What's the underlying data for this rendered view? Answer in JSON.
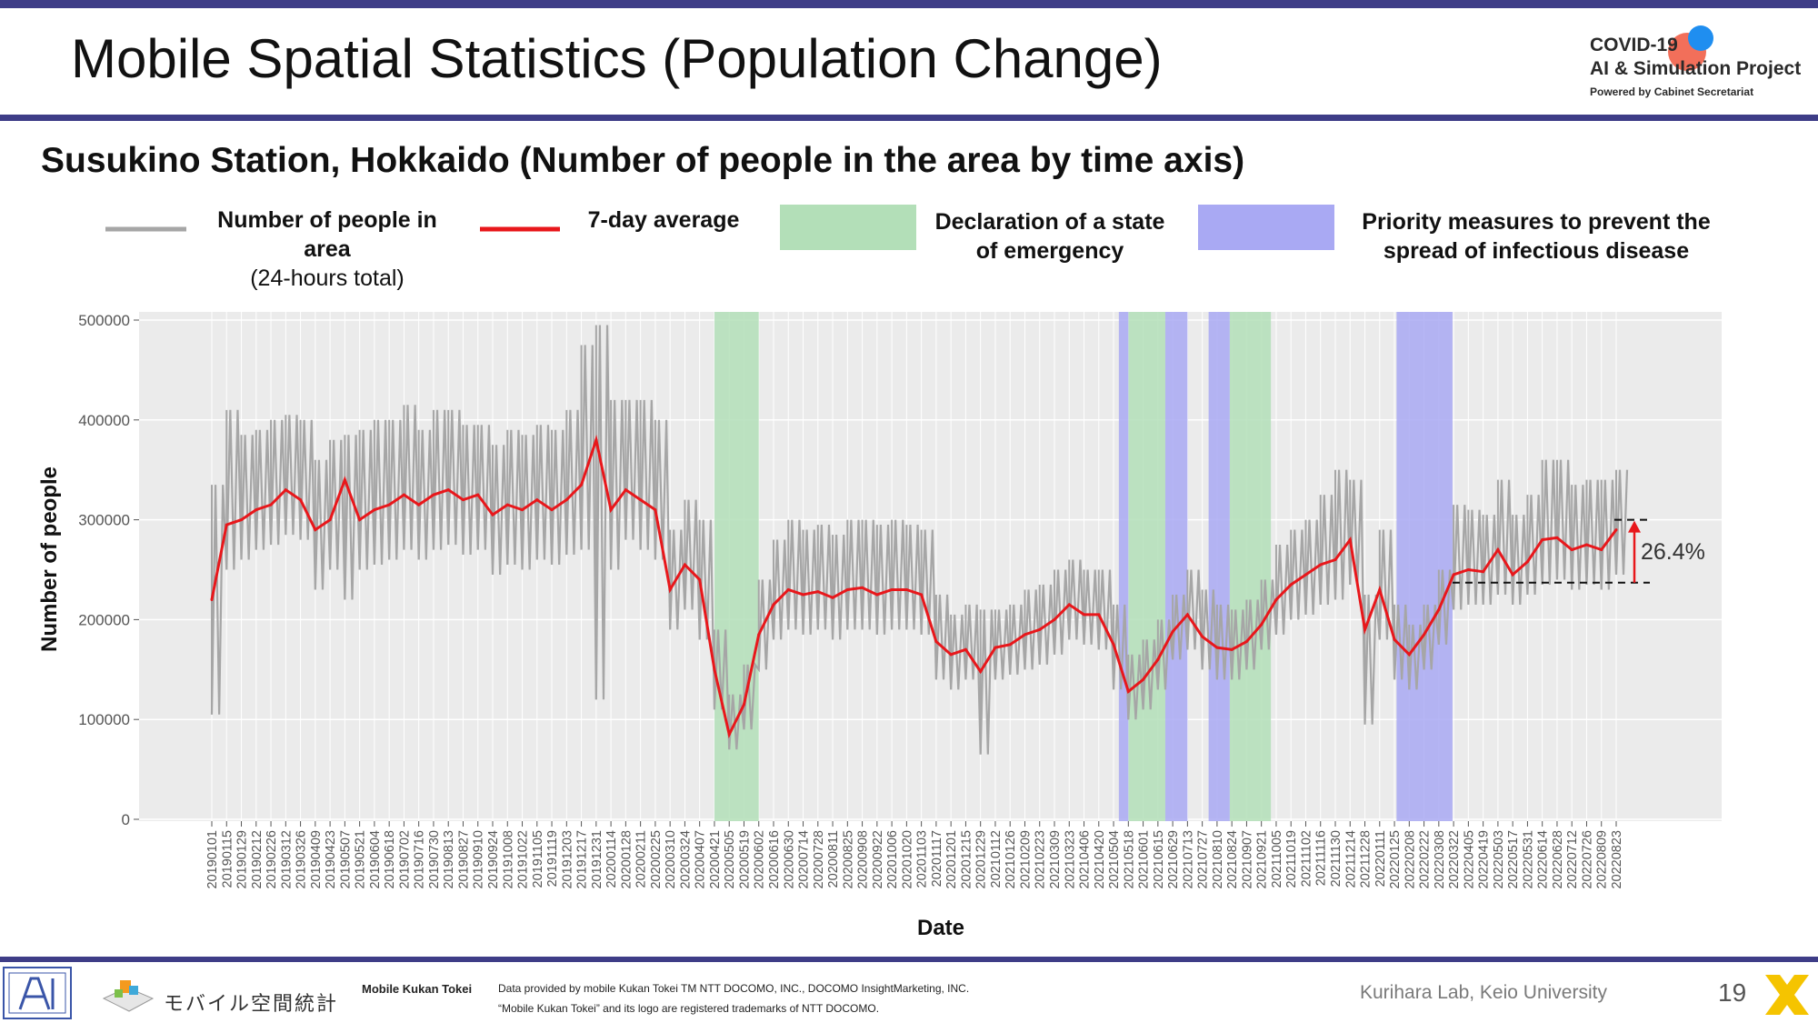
{
  "slide": {
    "title": "Mobile Spatial Statistics (Population Change)",
    "page_number": "19"
  },
  "logo": {
    "line1": "COVID-19",
    "line2": "AI & Simulation Project",
    "line3": "Powered by Cabinet Secretariat"
  },
  "legend": {
    "people_line1": "Number of people in area",
    "people_line2": "(24-hours total)",
    "average": "7-day average",
    "emergency_line1": "Declaration of a state",
    "emergency_line2": "of emergency",
    "priority_line1": "Priority measures to prevent the",
    "priority_line2": "spread of infectious disease"
  },
  "footer": {
    "brand_jp": "モバイル空間統計",
    "brand_en": "Mobile Kukan Tokei",
    "provider_line1": "Data provided by mobile Kukan Tokei TM NTT DOCOMO, INC., DOCOMO InsightMarketing, INC.",
    "provider_line2": "“Mobile Kukan Tokei” and its logo are registered trademarks of NTT DOCOMO.",
    "lab": "Kurihara Lab, Keio University"
  },
  "colors": {
    "accent": "#3e3d87",
    "daily_line": "#a6a6a6",
    "average_line": "#e8171b",
    "emergency": "#b3dfb8",
    "priority": "#a9a9f3",
    "panel": "#ebebeb"
  },
  "chart_data": {
    "type": "line",
    "title": "Susukino Station, Hokkaido (Number of people in the area by time axis)",
    "xlabel": "Date",
    "ylabel": "Number of people",
    "ylim": [
      0,
      500000
    ],
    "yticks": [
      "0",
      "100000",
      "200000",
      "300000",
      "400000",
      "500000"
    ],
    "x_ticks": [
      "20190101",
      "20190115",
      "20190129",
      "20190212",
      "20190226",
      "20190312",
      "20190326",
      "20190409",
      "20190423",
      "20190507",
      "20190521",
      "20190604",
      "20190618",
      "20190702",
      "20190716",
      "20190730",
      "20190813",
      "20190827",
      "20190910",
      "20190924",
      "20191008",
      "20191022",
      "20191105",
      "20191119",
      "20191203",
      "20191217",
      "20191231",
      "20200114",
      "20200128",
      "20200211",
      "20200225",
      "20200310",
      "20200324",
      "20200407",
      "20200421",
      "20200505",
      "20200519",
      "20200602",
      "20200616",
      "20200630",
      "20200714",
      "20200728",
      "20200811",
      "20200825",
      "20200908",
      "20200922",
      "20201006",
      "20201020",
      "20201103",
      "20201117",
      "20201201",
      "20201215",
      "20201229",
      "20210112",
      "20210126",
      "20210209",
      "20210223",
      "20210309",
      "20210323",
      "20210406",
      "20210420",
      "20210504",
      "20210518",
      "20210601",
      "20210615",
      "20210629",
      "20210713",
      "20210727",
      "20210810",
      "20210824",
      "20210907",
      "20210921",
      "20211005",
      "20211019",
      "20211102",
      "20211116",
      "20211130",
      "20211214",
      "20211228",
      "20220111",
      "20220125",
      "20220208",
      "20220222",
      "20220308",
      "20220322",
      "20220405",
      "20220419",
      "20220503",
      "20220517",
      "20220531",
      "20220614",
      "20220628",
      "20220712",
      "20220726",
      "20220809",
      "20220823"
    ],
    "series": [
      {
        "name": "7-day average",
        "x": [
          "20190101",
          "20190115",
          "20190129",
          "20190212",
          "20190226",
          "20190312",
          "20190326",
          "20190409",
          "20190423",
          "20190507",
          "20190521",
          "20190604",
          "20190618",
          "20190702",
          "20190716",
          "20190730",
          "20190813",
          "20190827",
          "20190910",
          "20190924",
          "20191008",
          "20191022",
          "20191105",
          "20191119",
          "20191203",
          "20191217",
          "20191231",
          "20200114",
          "20200128",
          "20200211",
          "20200225",
          "20200310",
          "20200324",
          "20200407",
          "20200421",
          "20200505",
          "20200519",
          "20200602",
          "20200616",
          "20200630",
          "20200714",
          "20200728",
          "20200811",
          "20200825",
          "20200908",
          "20200922",
          "20201006",
          "20201020",
          "20201103",
          "20201117",
          "20201201",
          "20201215",
          "20201229",
          "20210112",
          "20210126",
          "20210209",
          "20210223",
          "20210309",
          "20210323",
          "20210406",
          "20210420",
          "20210504",
          "20210518",
          "20210601",
          "20210615",
          "20210629",
          "20210713",
          "20210727",
          "20210810",
          "20210824",
          "20210907",
          "20210921",
          "20211005",
          "20211019",
          "20211102",
          "20211116",
          "20211130",
          "20211214",
          "20211228",
          "20220111",
          "20220125",
          "20220208",
          "20220222",
          "20220308",
          "20220322",
          "20220405",
          "20220419",
          "20220503",
          "20220517",
          "20220531",
          "20220614",
          "20220628",
          "20220712",
          "20220726",
          "20220809",
          "20220823"
        ],
        "values": [
          220000,
          295000,
          300000,
          310000,
          315000,
          330000,
          320000,
          290000,
          300000,
          340000,
          300000,
          310000,
          315000,
          325000,
          315000,
          325000,
          330000,
          320000,
          325000,
          305000,
          315000,
          310000,
          320000,
          310000,
          320000,
          335000,
          380000,
          310000,
          330000,
          320000,
          310000,
          230000,
          255000,
          240000,
          150000,
          85000,
          115000,
          185000,
          215000,
          230000,
          225000,
          228000,
          222000,
          230000,
          232000,
          225000,
          230000,
          230000,
          225000,
          178000,
          165000,
          170000,
          148000,
          172000,
          175000,
          185000,
          190000,
          200000,
          215000,
          205000,
          205000,
          175000,
          128000,
          140000,
          160000,
          188000,
          205000,
          183000,
          172000,
          170000,
          178000,
          195000,
          220000,
          235000,
          245000,
          255000,
          260000,
          280000,
          190000,
          230000,
          180000,
          165000,
          185000,
          210000,
          245000,
          250000,
          248000,
          270000,
          245000,
          258000,
          280000,
          282000,
          270000,
          275000,
          270000,
          290000
        ]
      },
      {
        "name": "Number of people in area (24-hours total)",
        "x": [
          "20190101",
          "20190115",
          "20190129",
          "20190212",
          "20190226",
          "20190312",
          "20190326",
          "20190409",
          "20190423",
          "20190507",
          "20190521",
          "20190604",
          "20190618",
          "20190702",
          "20190716",
          "20190730",
          "20190813",
          "20190827",
          "20190910",
          "20190924",
          "20191008",
          "20191022",
          "20191105",
          "20191119",
          "20191203",
          "20191217",
          "20191231",
          "20200114",
          "20200128",
          "20200211",
          "20200225",
          "20200310",
          "20200324",
          "20200407",
          "20200421",
          "20200505",
          "20200519",
          "20200602",
          "20200616",
          "20200630",
          "20200714",
          "20200728",
          "20200811",
          "20200825",
          "20200908",
          "20200922",
          "20201006",
          "20201020",
          "20201103",
          "20201117",
          "20201201",
          "20201215",
          "20201229",
          "20210112",
          "20210126",
          "20210209",
          "20210223",
          "20210309",
          "20210323",
          "20210406",
          "20210420",
          "20210504",
          "20210518",
          "20210601",
          "20210615",
          "20210629",
          "20210713",
          "20210727",
          "20210810",
          "20210824",
          "20210907",
          "20210921",
          "20211005",
          "20211019",
          "20211102",
          "20211116",
          "20211130",
          "20211214",
          "20211228",
          "20220111",
          "20220125",
          "20220208",
          "20220222",
          "20220308",
          "20220322",
          "20220405",
          "20220419",
          "20220503",
          "20220517",
          "20220531",
          "20220614",
          "20220628",
          "20220712",
          "20220726",
          "20220809",
          "20220823"
        ],
        "max": [
          335000,
          410000,
          385000,
          390000,
          400000,
          405000,
          400000,
          360000,
          380000,
          385000,
          390000,
          400000,
          400000,
          415000,
          390000,
          410000,
          410000,
          395000,
          395000,
          375000,
          390000,
          385000,
          395000,
          390000,
          410000,
          475000,
          495000,
          420000,
          420000,
          420000,
          400000,
          290000,
          320000,
          300000,
          190000,
          125000,
          155000,
          240000,
          280000,
          300000,
          290000,
          295000,
          285000,
          300000,
          300000,
          295000,
          300000,
          295000,
          290000,
          225000,
          205000,
          215000,
          210000,
          210000,
          215000,
          230000,
          235000,
          250000,
          260000,
          250000,
          250000,
          215000,
          165000,
          180000,
          200000,
          225000,
          250000,
          230000,
          215000,
          210000,
          220000,
          240000,
          275000,
          290000,
          300000,
          325000,
          350000,
          340000,
          225000,
          290000,
          215000,
          195000,
          215000,
          250000,
          315000,
          310000,
          305000,
          340000,
          305000,
          325000,
          360000,
          360000,
          335000,
          340000,
          340000,
          350000
        ],
        "min": [
          105000,
          250000,
          260000,
          270000,
          275000,
          285000,
          280000,
          230000,
          250000,
          220000,
          250000,
          255000,
          260000,
          270000,
          260000,
          270000,
          275000,
          265000,
          270000,
          245000,
          255000,
          250000,
          260000,
          255000,
          265000,
          270000,
          120000,
          250000,
          280000,
          270000,
          260000,
          190000,
          210000,
          180000,
          110000,
          70000,
          90000,
          150000,
          180000,
          190000,
          185000,
          190000,
          180000,
          190000,
          190000,
          185000,
          190000,
          190000,
          185000,
          140000,
          130000,
          140000,
          65000,
          140000,
          145000,
          150000,
          155000,
          165000,
          180000,
          175000,
          170000,
          130000,
          100000,
          110000,
          130000,
          160000,
          170000,
          150000,
          140000,
          140000,
          150000,
          170000,
          185000,
          200000,
          205000,
          215000,
          220000,
          235000,
          95000,
          180000,
          140000,
          130000,
          150000,
          175000,
          210000,
          215000,
          215000,
          225000,
          215000,
          225000,
          235000,
          240000,
          230000,
          235000,
          230000,
          245000
        ]
      }
    ],
    "emergency_periods": [
      [
        "20200421",
        "20200602"
      ],
      [
        "20210518",
        "20210622"
      ],
      [
        "20210822",
        "20210930"
      ]
    ],
    "priority_periods": [
      [
        "20210509",
        "20210518"
      ],
      [
        "20210622",
        "20210713"
      ],
      [
        "20210802",
        "20210822"
      ],
      [
        "20220127",
        "20220321"
      ]
    ],
    "annotation": {
      "label": "26.4%",
      "lower": 237000,
      "upper": 300000,
      "from_x": "20220321"
    },
    "grid": true,
    "legend_position": "top"
  }
}
